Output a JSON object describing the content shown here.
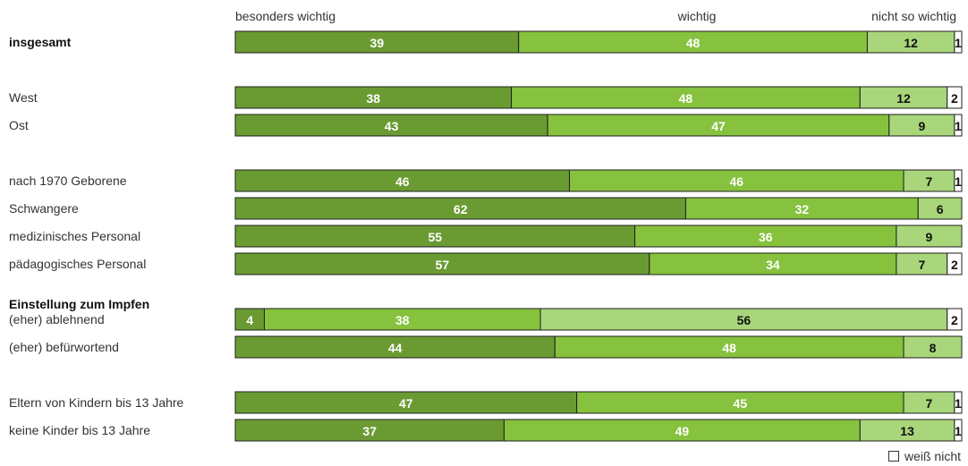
{
  "chart_data": {
    "type": "bar",
    "orientation": "horizontal",
    "stacked": true,
    "percent_scale": [
      0,
      100
    ],
    "series": [
      {
        "name": "besonders wichtig",
        "color": "#6a9b32",
        "text_color": "#ffffff"
      },
      {
        "name": "wichtig",
        "color": "#86c23e",
        "text_color": "#ffffff"
      },
      {
        "name": "nicht so wichtig",
        "color": "#a9d67a",
        "text_color": "#111111"
      },
      {
        "name": "weiß nicht",
        "color": "#ffffff",
        "text_color": "#111111"
      }
    ],
    "rows": [
      {
        "label": "insgesamt",
        "bold": true,
        "values": [
          39,
          48,
          12,
          1
        ]
      },
      {
        "label": "West",
        "values": [
          38,
          48,
          12,
          2
        ]
      },
      {
        "label": "Ost",
        "values": [
          43,
          47,
          9,
          1
        ]
      },
      {
        "label": "nach 1970 Geborene",
        "values": [
          46,
          46,
          7,
          1
        ]
      },
      {
        "label": "Schwangere",
        "values": [
          62,
          32,
          6,
          0
        ]
      },
      {
        "label": "medizinisches Personal",
        "values": [
          55,
          36,
          9,
          0
        ]
      },
      {
        "label": "pädagogisches Personal",
        "values": [
          57,
          34,
          7,
          2
        ]
      },
      {
        "label": "(eher) ablehnend",
        "group_heading": "Einstellung zum Impfen",
        "values": [
          4,
          38,
          56,
          2
        ]
      },
      {
        "label": "(eher) befürwortend",
        "values": [
          44,
          48,
          8,
          0
        ]
      },
      {
        "label": "Eltern von Kindern bis 13 Jahre",
        "values": [
          47,
          45,
          7,
          1
        ]
      },
      {
        "label": "keine Kinder bis 13 Jahre",
        "values": [
          37,
          49,
          13,
          1
        ]
      }
    ],
    "legend": {
      "label": "weiß nicht",
      "placement": "bottom-right"
    }
  }
}
